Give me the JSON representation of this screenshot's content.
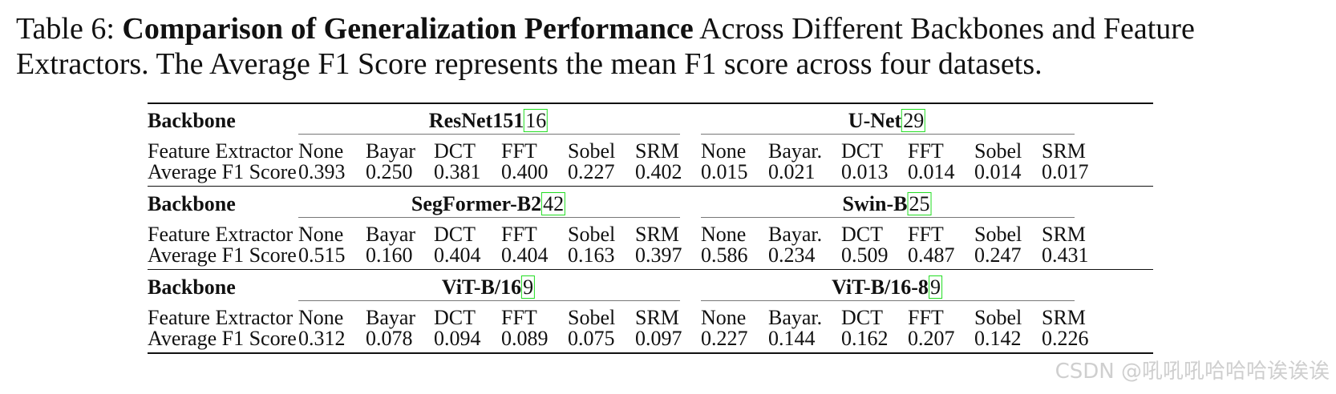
{
  "caption": {
    "label": "Table 6:",
    "bold": "Comparison of Generalization Performance",
    "rest": "Across Different Backbones and Feature Extractors. The Average F1 Score represents the mean F1 score across four datasets."
  },
  "row_labels": {
    "backbone": "Backbone",
    "feature_extractor": "Feature Extractor",
    "score": "Average F1 Score"
  },
  "groups": [
    {
      "left": {
        "name": "ResNet151",
        "cite": "16",
        "extractors": [
          "None",
          "Bayar",
          "DCT",
          "FFT",
          "Sobel",
          "SRM"
        ],
        "scores": [
          "0.393",
          "0.250",
          "0.381",
          "0.400",
          "0.227",
          "0.402"
        ]
      },
      "right": {
        "name": "U-Net",
        "cite": "29",
        "extractors": [
          "None",
          "Bayar.",
          "DCT",
          "FFT",
          "Sobel",
          "SRM"
        ],
        "scores": [
          "0.015",
          "0.021",
          "0.013",
          "0.014",
          "0.014",
          "0.017"
        ]
      }
    },
    {
      "left": {
        "name": "SegFormer-B2",
        "cite": "42",
        "extractors": [
          "None",
          "Bayar",
          "DCT",
          "FFT",
          "Sobel",
          "SRM"
        ],
        "scores": [
          "0.515",
          "0.160",
          "0.404",
          "0.404",
          "0.163",
          "0.397"
        ]
      },
      "right": {
        "name": "Swin-B",
        "cite": "25",
        "extractors": [
          "None",
          "Bayar.",
          "DCT",
          "FFT",
          "Sobel",
          "SRM"
        ],
        "scores": [
          "0.586",
          "0.234",
          "0.509",
          "0.487",
          "0.247",
          "0.431"
        ]
      }
    },
    {
      "left": {
        "name": "ViT-B/16",
        "cite": "9",
        "extractors": [
          "None",
          "Bayar",
          "DCT",
          "FFT",
          "Sobel",
          "SRM"
        ],
        "scores": [
          "0.312",
          "0.078",
          "0.094",
          "0.089",
          "0.075",
          "0.097"
        ]
      },
      "right": {
        "name": "ViT-B/16-8",
        "cite": "9",
        "extractors": [
          "None",
          "Bayar.",
          "DCT",
          "FFT",
          "Sobel",
          "SRM"
        ],
        "scores": [
          "0.227",
          "0.144",
          "0.162",
          "0.207",
          "0.142",
          "0.226"
        ]
      }
    }
  ],
  "watermark": "CSDN @吼吼吼哈哈哈诶诶诶"
}
